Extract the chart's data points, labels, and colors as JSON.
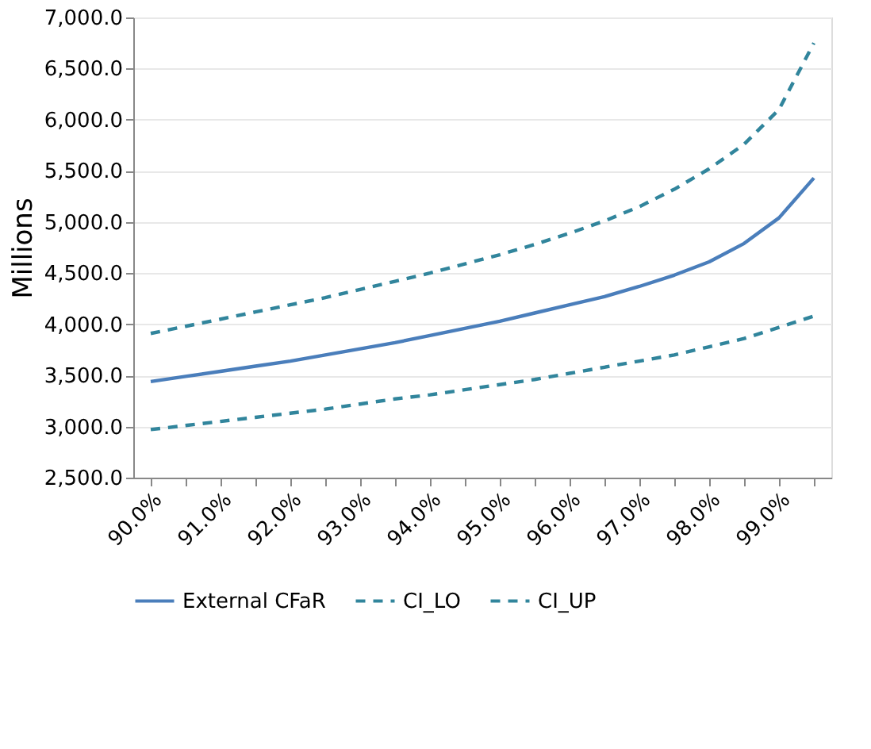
{
  "chart_data": {
    "type": "line",
    "ylabel": "Millions",
    "categories": [
      "90.0%",
      null,
      "91.0%",
      null,
      "92.0%",
      null,
      "93.0%",
      null,
      "94.0%",
      null,
      "95.0%",
      null,
      "96.0%",
      null,
      "97.0%",
      null,
      "98.0%",
      null,
      "99.0%",
      null
    ],
    "series": [
      {
        "name": "External CFaR",
        "color": "#4a7ebb",
        "line_style": "solid",
        "values": [
          3440,
          3490,
          3540,
          3590,
          3640,
          3700,
          3760,
          3820,
          3890,
          3960,
          4030,
          4110,
          4190,
          4270,
          4370,
          4480,
          4610,
          4790,
          5040,
          5430
        ]
      },
      {
        "name": "CI_LO",
        "color": "#31859c",
        "line_style": "dashed",
        "values": [
          2970,
          3010,
          3050,
          3090,
          3130,
          3170,
          3220,
          3270,
          3310,
          3360,
          3410,
          3460,
          3520,
          3580,
          3640,
          3700,
          3780,
          3860,
          3970,
          4080
        ]
      },
      {
        "name": "CI_UP",
        "color": "#31859c",
        "line_style": "dashed",
        "values": [
          3910,
          3980,
          4050,
          4120,
          4190,
          4260,
          4340,
          4420,
          4500,
          4590,
          4680,
          4780,
          4890,
          5010,
          5150,
          5320,
          5520,
          5760,
          6100,
          6750
        ]
      }
    ],
    "ylim": [
      2500,
      7000
    ],
    "yticks": [
      {
        "value": 2500,
        "label": "2,500.0"
      },
      {
        "value": 3000,
        "label": "3,000.0"
      },
      {
        "value": 3500,
        "label": "3,500.0"
      },
      {
        "value": 4000,
        "label": "4,000.0"
      },
      {
        "value": 4500,
        "label": "4,500.0"
      },
      {
        "value": 5000,
        "label": "5,000.0"
      },
      {
        "value": 5500,
        "label": "5,500.0"
      },
      {
        "value": 6000,
        "label": "6,000.0"
      },
      {
        "value": 6500,
        "label": "6,500.0"
      },
      {
        "value": 7000,
        "label": "7,000.0"
      }
    ],
    "grid": "y",
    "legend": "bottom",
    "marker": "none"
  }
}
